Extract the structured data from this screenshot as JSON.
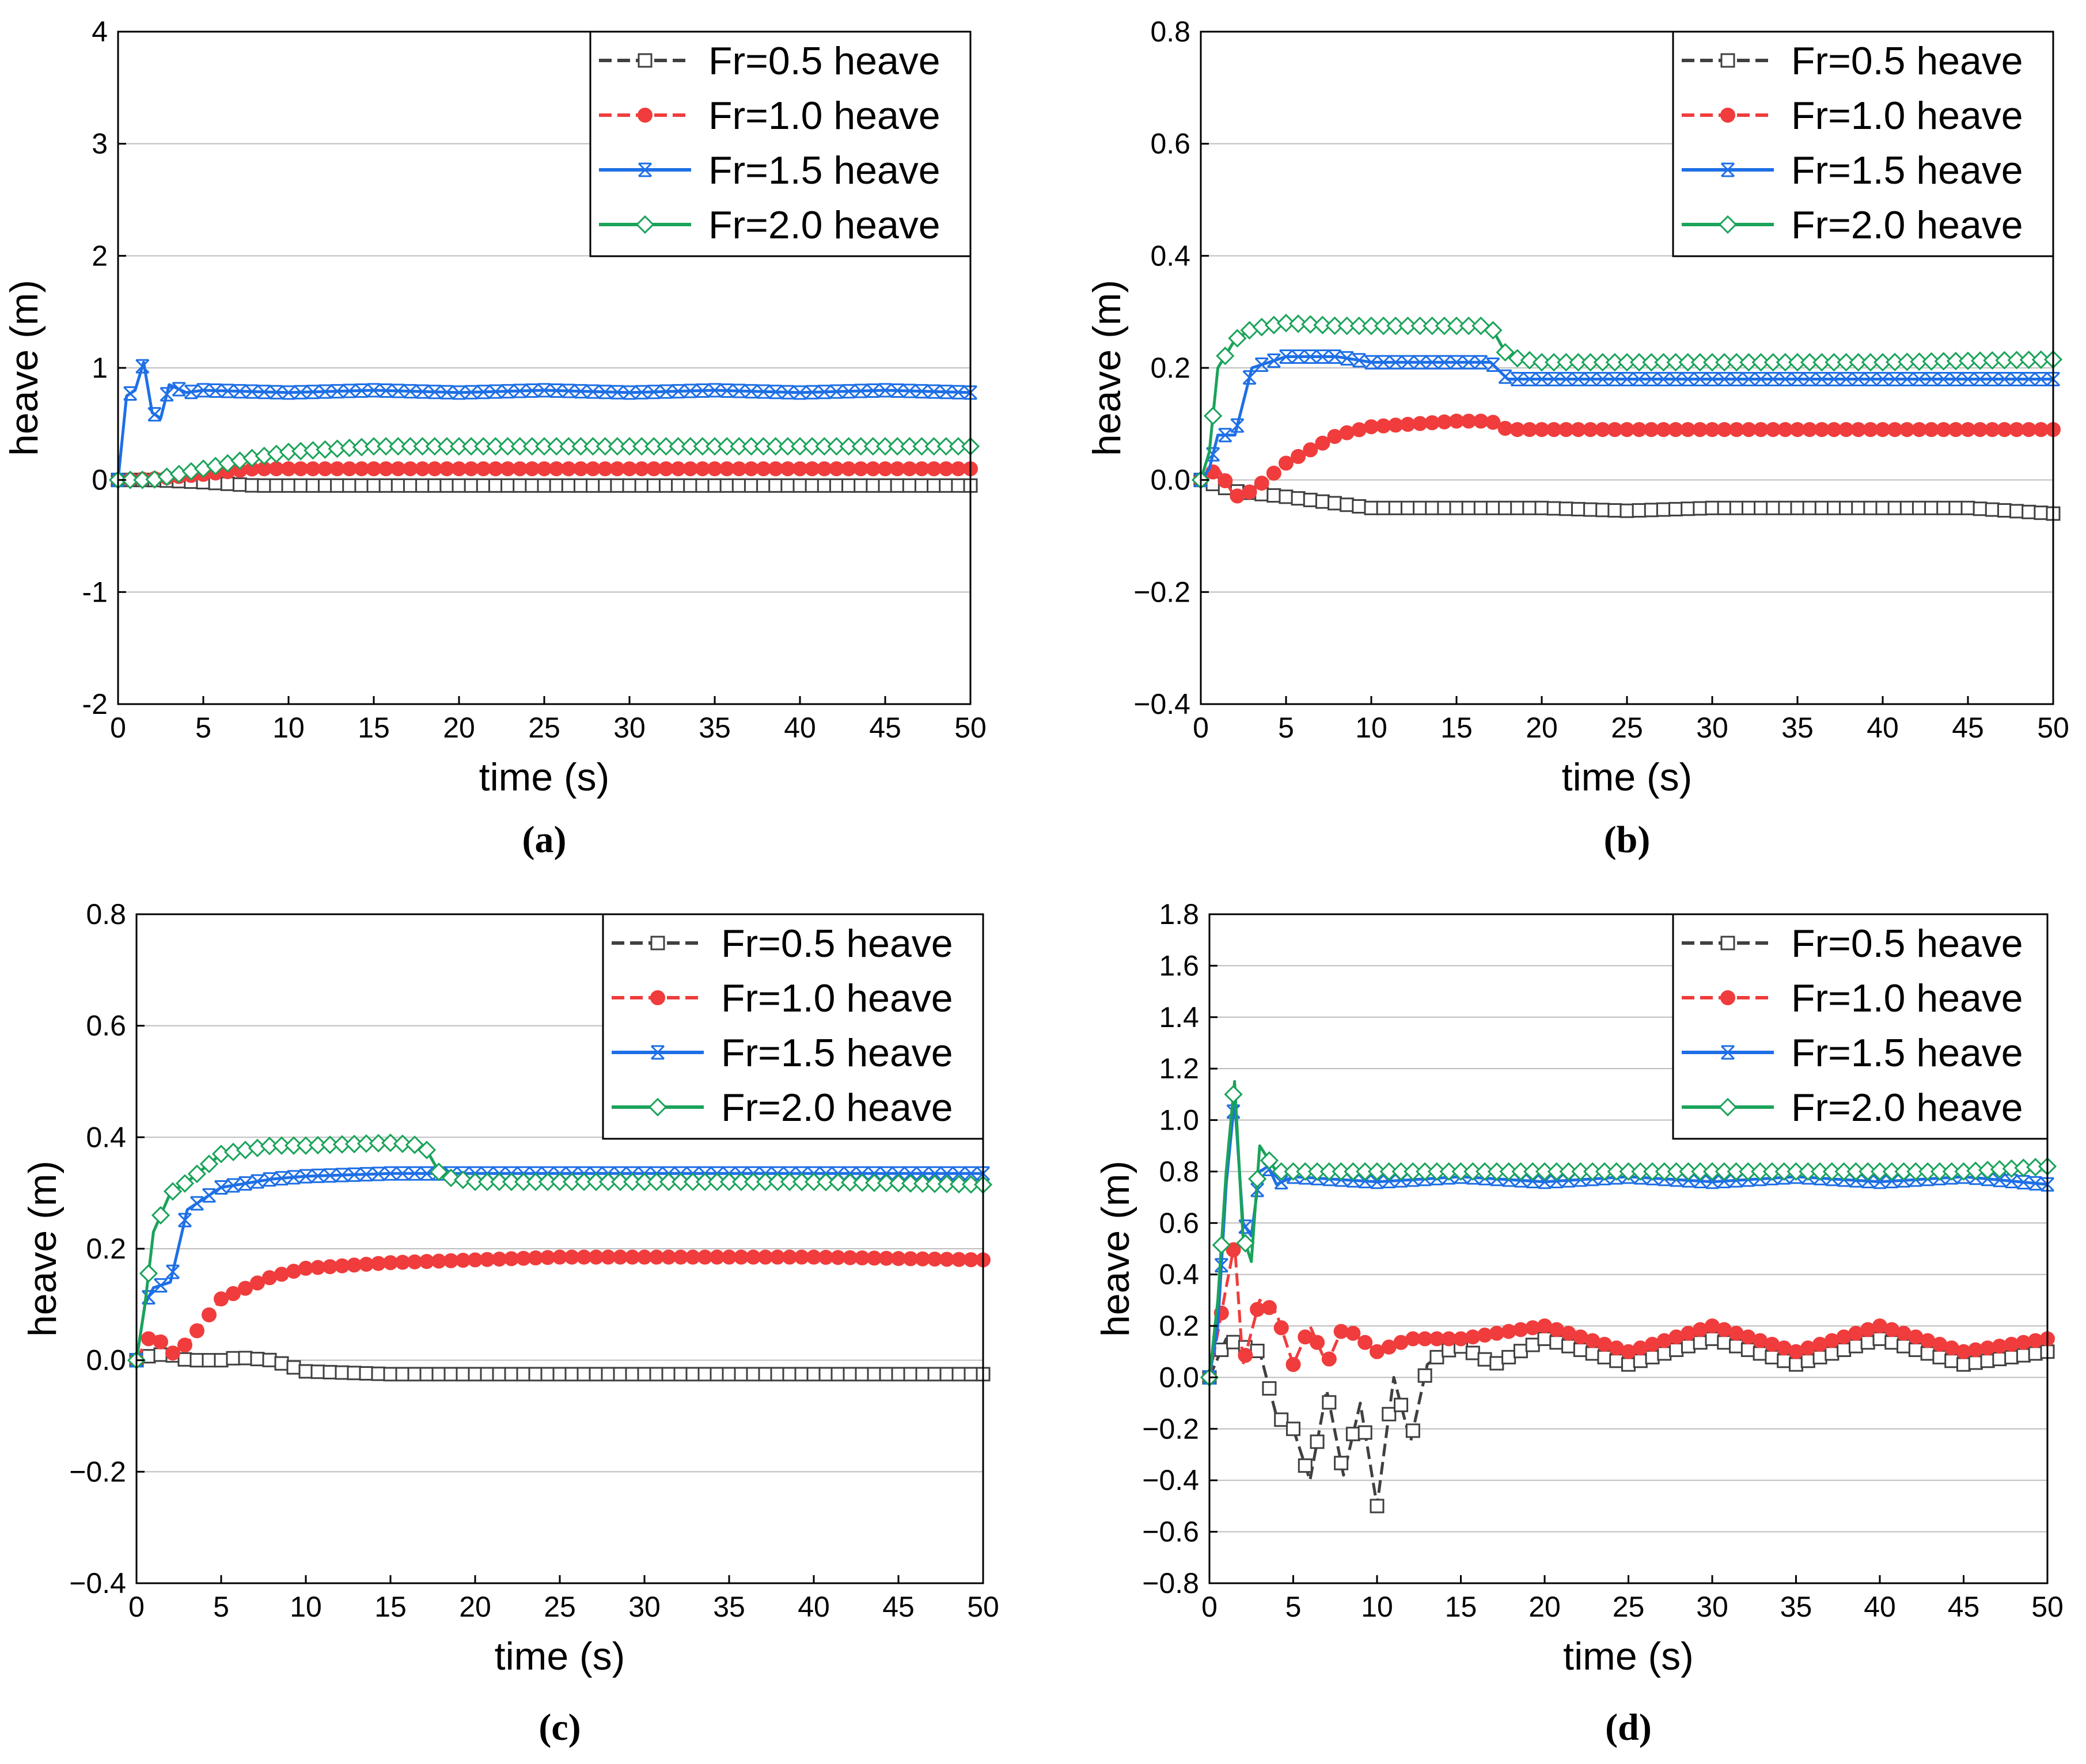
{
  "chart_data": [
    {
      "panel_label": "(a)",
      "type": "line",
      "xlabel": "time (s)",
      "ylabel": "heave (m)",
      "xlim": [
        0,
        50
      ],
      "ylim": [
        -2,
        4
      ],
      "xticks": [
        0,
        5,
        10,
        15,
        20,
        25,
        30,
        35,
        40,
        45,
        50
      ],
      "yticks": [
        -2,
        -1,
        0,
        1,
        2,
        3,
        4
      ],
      "grid": "horizontal",
      "legend": "top-right",
      "series": [
        {
          "name": "Fr=0.5 heave",
          "color": "#404040",
          "marker": "square-open",
          "x": [
            0,
            2,
            5,
            8,
            10,
            15,
            20,
            30,
            40,
            50
          ],
          "y": [
            0,
            0,
            -0.02,
            -0.05,
            -0.05,
            -0.05,
            -0.05,
            -0.05,
            -0.05,
            -0.05
          ]
        },
        {
          "name": "Fr=1.0 heave",
          "color": "#f03c3c",
          "marker": "circle-filled",
          "x": [
            0,
            2,
            5,
            8,
            10,
            15,
            20,
            30,
            40,
            50
          ],
          "y": [
            0,
            0.01,
            0.05,
            0.1,
            0.1,
            0.1,
            0.1,
            0.1,
            0.1,
            0.1
          ]
        },
        {
          "name": "Fr=1.5 heave",
          "color": "#1e6fe6",
          "marker": "asterisk",
          "x": [
            0,
            0.5,
            1,
            1.5,
            2,
            2.5,
            3,
            4,
            5,
            10,
            15,
            20,
            25,
            30,
            35,
            40,
            45,
            50
          ],
          "y": [
            0,
            0.75,
            0.8,
            1.05,
            0.6,
            0.55,
            0.85,
            0.78,
            0.8,
            0.78,
            0.8,
            0.78,
            0.8,
            0.78,
            0.8,
            0.78,
            0.8,
            0.78
          ]
        },
        {
          "name": "Fr=2.0 heave",
          "color": "#1aa35a",
          "marker": "diamond-open",
          "x": [
            0,
            2,
            5,
            8,
            10,
            15,
            20,
            30,
            40,
            50
          ],
          "y": [
            0,
            0,
            0.1,
            0.2,
            0.25,
            0.3,
            0.3,
            0.3,
            0.3,
            0.3
          ]
        }
      ]
    },
    {
      "panel_label": "(b)",
      "type": "line",
      "xlabel": "time  (s)",
      "ylabel": "heave  (m)",
      "xlim": [
        0,
        50
      ],
      "ylim": [
        -0.4,
        0.8
      ],
      "xticks": [
        0,
        5,
        10,
        15,
        20,
        25,
        30,
        35,
        40,
        45,
        50
      ],
      "yticks": [
        "−0.4",
        "−0.2",
        "0.0",
        "0.2",
        "0.4",
        "0.6",
        "0.8"
      ],
      "grid": "horizontal",
      "legend": "top-right",
      "series": [
        {
          "name": "Fr=0.5 heave",
          "color": "#404040",
          "marker": "square-open",
          "x": [
            0,
            2,
            5,
            10,
            15,
            20,
            25,
            30,
            35,
            40,
            45,
            50
          ],
          "y": [
            0,
            -0.02,
            -0.03,
            -0.05,
            -0.05,
            -0.05,
            -0.055,
            -0.05,
            -0.05,
            -0.05,
            -0.05,
            -0.06
          ]
        },
        {
          "name": "Fr=1.0 heave",
          "color": "#f03c3c",
          "marker": "circle-filled",
          "x": [
            0,
            1,
            2,
            3,
            5,
            8,
            10,
            15,
            17,
            18,
            20,
            30,
            40,
            50
          ],
          "y": [
            0,
            0.02,
            -0.03,
            -0.02,
            0.03,
            0.08,
            0.095,
            0.105,
            0.105,
            0.09,
            0.09,
            0.09,
            0.09,
            0.09
          ]
        },
        {
          "name": "Fr=1.5 heave",
          "color": "#1e6fe6",
          "marker": "asterisk",
          "x": [
            0,
            0.5,
            1,
            2,
            3,
            5,
            8,
            10,
            15,
            17,
            18,
            20,
            30,
            40,
            50
          ],
          "y": [
            0,
            0.02,
            0.08,
            0.08,
            0.2,
            0.22,
            0.22,
            0.21,
            0.21,
            0.21,
            0.18,
            0.18,
            0.18,
            0.18,
            0.18
          ]
        },
        {
          "name": "Fr=2.0 heave",
          "color": "#1aa35a",
          "marker": "diamond-open",
          "x": [
            0,
            0.5,
            1,
            2,
            3,
            5,
            8,
            10,
            15,
            17,
            18,
            20,
            30,
            40,
            50
          ],
          "y": [
            0,
            0.05,
            0.2,
            0.25,
            0.27,
            0.28,
            0.275,
            0.275,
            0.275,
            0.275,
            0.22,
            0.21,
            0.21,
            0.21,
            0.215
          ]
        }
      ]
    },
    {
      "panel_label": "(c)",
      "type": "line",
      "xlabel": "time  (s)",
      "ylabel": "heave  (m)",
      "xlim": [
        0,
        50
      ],
      "ylim": [
        -0.4,
        0.8
      ],
      "xticks": [
        0,
        5,
        10,
        15,
        20,
        25,
        30,
        35,
        40,
        45,
        50
      ],
      "yticks": [
        "−0.4",
        "−0.2",
        "0.0",
        "0.2",
        "0.4",
        "0.6",
        "0.8"
      ],
      "grid": "horizontal",
      "legend": "top-right",
      "series": [
        {
          "name": "Fr=0.5 heave",
          "color": "#404040",
          "marker": "square-open",
          "x": [
            0,
            1,
            2,
            3,
            5,
            6,
            8,
            10,
            15,
            20,
            30,
            40,
            50
          ],
          "y": [
            0,
            0.01,
            0.01,
            0,
            0,
            0.005,
            0,
            -0.02,
            -0.025,
            -0.025,
            -0.025,
            -0.025,
            -0.025
          ]
        },
        {
          "name": "Fr=1.0 heave",
          "color": "#f03c3c",
          "marker": "circle-filled",
          "x": [
            0,
            0.5,
            1,
            2,
            3,
            5,
            8,
            10,
            15,
            20,
            25,
            30,
            40,
            50
          ],
          "y": [
            0,
            0.03,
            0.05,
            0.01,
            0.03,
            0.11,
            0.15,
            0.165,
            0.175,
            0.18,
            0.185,
            0.185,
            0.185,
            0.18
          ]
        },
        {
          "name": "Fr=1.5 heave",
          "color": "#1e6fe6",
          "marker": "asterisk",
          "x": [
            0,
            0.5,
            1,
            2,
            3,
            5,
            8,
            10,
            15,
            17,
            18,
            20,
            30,
            40,
            50
          ],
          "y": [
            0,
            0.1,
            0.13,
            0.14,
            0.27,
            0.31,
            0.325,
            0.33,
            0.335,
            0.335,
            0.335,
            0.335,
            0.335,
            0.335,
            0.335
          ]
        },
        {
          "name": "Fr=2.0 heave",
          "color": "#1aa35a",
          "marker": "diamond-open",
          "x": [
            0,
            0.5,
            1,
            2,
            3,
            5,
            8,
            10,
            15,
            17,
            18,
            20,
            30,
            40,
            50
          ],
          "y": [
            0,
            0.1,
            0.23,
            0.3,
            0.32,
            0.37,
            0.385,
            0.385,
            0.39,
            0.385,
            0.33,
            0.32,
            0.32,
            0.32,
            0.315
          ]
        }
      ]
    },
    {
      "panel_label": "(d)",
      "type": "line",
      "xlabel": "time  (s)",
      "ylabel": "heave  (m)",
      "xlim": [
        0,
        50
      ],
      "ylim": [
        -0.8,
        1.8
      ],
      "xticks": [
        0,
        5,
        10,
        15,
        20,
        25,
        30,
        35,
        40,
        45,
        50
      ],
      "yticks": [
        "−0.8",
        "−0.6",
        "−0.4",
        "−0.2",
        "0.0",
        "0.2",
        "0.4",
        "0.6",
        "0.8",
        "1.0",
        "1.2",
        "1.4",
        "1.6",
        "1.8"
      ],
      "grid": "horizontal",
      "legend": "top-right",
      "series": [
        {
          "name": "Fr=0.5 heave",
          "color": "#404040",
          "marker": "square-open",
          "x": [
            0,
            1,
            2,
            3,
            4,
            5,
            6,
            7,
            8,
            9,
            10,
            11,
            12,
            13,
            14,
            15,
            17,
            20,
            25,
            30,
            35,
            40,
            45,
            50
          ],
          "y": [
            0,
            0.15,
            0.12,
            0.1,
            -0.15,
            -0.2,
            -0.4,
            -0.05,
            -0.38,
            -0.1,
            -0.5,
            0.0,
            -0.25,
            0.05,
            0.1,
            0.12,
            0.05,
            0.15,
            0.05,
            0.15,
            0.05,
            0.15,
            0.05,
            0.1
          ]
        },
        {
          "name": "Fr=1.0 heave",
          "color": "#f03c3c",
          "marker": "circle-filled",
          "x": [
            0,
            1,
            1.5,
            2,
            3,
            4,
            5,
            6,
            7,
            8,
            10,
            12,
            15,
            20,
            25,
            30,
            35,
            40,
            45,
            50
          ],
          "y": [
            0,
            0.35,
            0.52,
            0.05,
            0.3,
            0.25,
            0.05,
            0.2,
            0.05,
            0.2,
            0.1,
            0.15,
            0.15,
            0.2,
            0.1,
            0.2,
            0.1,
            0.2,
            0.1,
            0.15
          ]
        },
        {
          "name": "Fr=1.5 heave",
          "color": "#1e6fe6",
          "marker": "asterisk",
          "x": [
            0,
            0.5,
            1,
            1.5,
            2,
            2.5,
            3,
            3.5,
            4,
            5,
            10,
            15,
            20,
            25,
            30,
            35,
            40,
            45,
            50
          ],
          "y": [
            0,
            0.2,
            0.75,
            1.08,
            0.6,
            0.55,
            0.8,
            0.82,
            0.75,
            0.78,
            0.76,
            0.78,
            0.76,
            0.78,
            0.76,
            0.78,
            0.76,
            0.78,
            0.75
          ]
        },
        {
          "name": "Fr=2.0 heave",
          "color": "#1aa35a",
          "marker": "diamond-open",
          "x": [
            0,
            0.5,
            1,
            1.5,
            2,
            2.5,
            3,
            3.5,
            4,
            5,
            10,
            15,
            20,
            25,
            30,
            35,
            40,
            45,
            50
          ],
          "y": [
            0,
            0.3,
            0.8,
            1.15,
            0.55,
            0.45,
            0.9,
            0.85,
            0.8,
            0.8,
            0.8,
            0.8,
            0.8,
            0.8,
            0.8,
            0.8,
            0.8,
            0.8,
            0.82
          ]
        }
      ]
    }
  ]
}
